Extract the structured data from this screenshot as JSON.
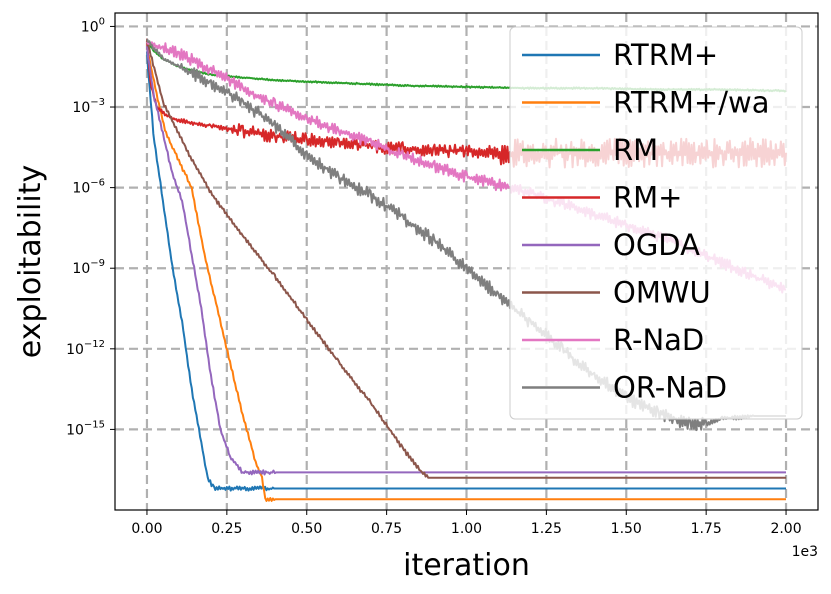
{
  "chart_data": {
    "type": "line",
    "title": "",
    "xlabel": "iteration",
    "ylabel": "exploitability",
    "x_offset_text": "1e3",
    "xscale": "linear",
    "yscale": "log",
    "xlim": [
      -0.1,
      2.1
    ],
    "ylim_log10": [
      -18.0,
      0.5
    ],
    "xticks": [
      {
        "value": 0.0,
        "label": "0.00"
      },
      {
        "value": 0.25,
        "label": "0.25"
      },
      {
        "value": 0.5,
        "label": "0.50"
      },
      {
        "value": 0.75,
        "label": "0.75"
      },
      {
        "value": 1.0,
        "label": "1.00"
      },
      {
        "value": 1.25,
        "label": "1.25"
      },
      {
        "value": 1.5,
        "label": "1.50"
      },
      {
        "value": 1.75,
        "label": "1.75"
      },
      {
        "value": 2.0,
        "label": "2.00"
      }
    ],
    "yticks": [
      {
        "exponent": 0,
        "base": "10",
        "exp": "0"
      },
      {
        "exponent": -3,
        "base": "10",
        "exp": "−3"
      },
      {
        "exponent": -6,
        "base": "10",
        "exp": "−6"
      },
      {
        "exponent": -9,
        "base": "10",
        "exp": "−9"
      },
      {
        "exponent": -12,
        "base": "10",
        "exp": "−12"
      },
      {
        "exponent": -15,
        "base": "10",
        "exp": "−15"
      }
    ],
    "grid": true,
    "legend_position": "top-right",
    "series": [
      {
        "name": "RTRM+",
        "color": "#1f77b4",
        "x": [
          0.0,
          0.02,
          0.05,
          0.08,
          0.11,
          0.14,
          0.17,
          0.19,
          0.21,
          2.0
        ],
        "log10_y": [
          -1.0,
          -4.0,
          -6.5,
          -9.0,
          -11.0,
          -13.5,
          -15.5,
          -16.8,
          -17.2,
          -17.2
        ]
      },
      {
        "name": "RTRM+/wa",
        "color": "#ff7f0e",
        "x": [
          0.0,
          0.03,
          0.06,
          0.1,
          0.14,
          0.18,
          0.22,
          0.26,
          0.3,
          0.34,
          0.36,
          0.37,
          2.0
        ],
        "log10_y": [
          -0.8,
          -2.5,
          -4.0,
          -5.0,
          -6.0,
          -8.5,
          -10.5,
          -12.5,
          -14.5,
          -16.2,
          -16.8,
          -17.6,
          -17.6
        ]
      },
      {
        "name": "RM",
        "color": "#2ca02c",
        "x": [
          0.0,
          0.02,
          0.05,
          0.1,
          0.2,
          0.4,
          0.6,
          0.8,
          1.0,
          1.2,
          1.4,
          1.6,
          1.8,
          2.0
        ],
        "log10_y": [
          -0.5,
          -0.9,
          -1.2,
          -1.5,
          -1.8,
          -2.0,
          -2.1,
          -2.2,
          -2.25,
          -2.3,
          -2.3,
          -2.35,
          -2.35,
          -2.4
        ]
      },
      {
        "name": "RM+",
        "color": "#d62728",
        "x": [
          0.0,
          0.01,
          0.03,
          0.06,
          0.1,
          0.2,
          0.3,
          0.4,
          0.5,
          0.6,
          0.7,
          0.8,
          0.9,
          1.0,
          1.2,
          1.4,
          1.6,
          1.8,
          2.0
        ],
        "log10_y": [
          -0.5,
          -2.0,
          -3.0,
          -3.3,
          -3.5,
          -3.7,
          -3.9,
          -4.1,
          -4.2,
          -4.3,
          -4.45,
          -4.55,
          -4.6,
          -4.65,
          -4.7,
          -4.7,
          -4.7,
          -4.7,
          -4.7
        ]
      },
      {
        "name": "OGDA",
        "color": "#9467bd",
        "x": [
          0.0,
          0.02,
          0.05,
          0.08,
          0.11,
          0.14,
          0.17,
          0.2,
          0.23,
          0.26,
          0.3,
          2.0
        ],
        "log10_y": [
          -0.8,
          -2.5,
          -4.0,
          -5.5,
          -6.5,
          -8.5,
          -10.5,
          -13.0,
          -15.0,
          -16.0,
          -16.6,
          -16.6
        ]
      },
      {
        "name": "OMWU",
        "color": "#8c564b",
        "x": [
          0.0,
          0.05,
          0.12,
          0.2,
          0.3,
          0.4,
          0.5,
          0.6,
          0.7,
          0.8,
          0.86,
          0.88,
          2.0
        ],
        "log10_y": [
          -0.5,
          -2.8,
          -4.5,
          -6.2,
          -7.8,
          -9.3,
          -10.9,
          -12.5,
          -14.0,
          -15.7,
          -16.6,
          -16.8,
          -16.8
        ]
      },
      {
        "name": "R-NaD",
        "color": "#e377c2",
        "x": [
          0.0,
          0.05,
          0.1,
          0.2,
          0.3,
          0.4,
          0.5,
          0.6,
          0.7,
          0.8,
          0.9,
          1.0,
          1.2,
          1.4,
          1.6,
          1.8,
          2.0
        ],
        "log10_y": [
          -0.6,
          -0.8,
          -1.0,
          -1.6,
          -2.3,
          -2.9,
          -3.4,
          -3.9,
          -4.3,
          -4.8,
          -5.2,
          -5.6,
          -6.2,
          -7.0,
          -7.8,
          -8.8,
          -9.8
        ]
      },
      {
        "name": "OR-NaD",
        "color": "#7f7f7f",
        "x": [
          0.0,
          0.05,
          0.1,
          0.2,
          0.3,
          0.4,
          0.5,
          0.6,
          0.7,
          0.8,
          0.9,
          1.0,
          1.1,
          1.2,
          1.3,
          1.4,
          1.5,
          1.6,
          1.7,
          1.75,
          1.8,
          1.9,
          2.0
        ],
        "log10_y": [
          -0.5,
          -1.2,
          -1.5,
          -2.1,
          -2.8,
          -3.7,
          -4.8,
          -5.6,
          -6.3,
          -7.1,
          -8.0,
          -9.0,
          -10.0,
          -11.0,
          -12.0,
          -13.0,
          -13.8,
          -14.4,
          -14.8,
          -14.8,
          -14.6,
          -14.5,
          -14.5
        ]
      }
    ]
  }
}
